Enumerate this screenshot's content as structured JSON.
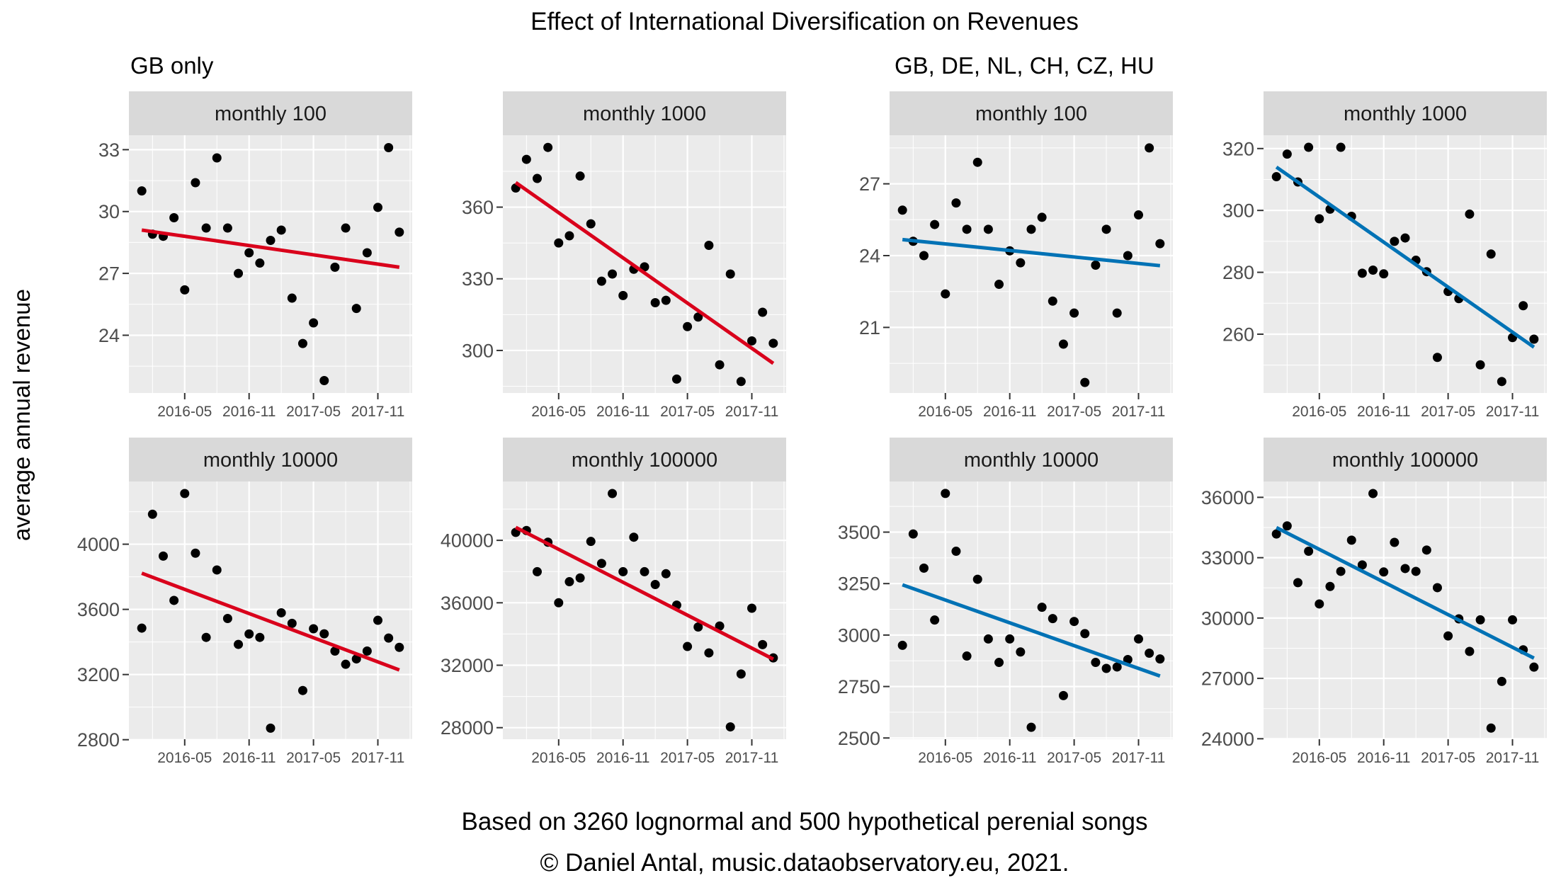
{
  "title": "Effect of International Diversification on Revenues",
  "groups": {
    "left": "GB only",
    "right": "GB, DE, NL, CH, CZ, HU"
  },
  "ylabel": "average annual revenue",
  "caption": {
    "line1": "Based on 3260 lognormal and 500 hypothetical perenial songs",
    "line2": "© Daniel Antal, music.dataobservatory.eu, 2021."
  },
  "colors": {
    "gb_trend": "#d9001b",
    "intl_trend": "#0072b5",
    "points": "#000000",
    "panel_bg": "#ebebeb",
    "strip_bg": "#d9d9d9"
  },
  "chart_data": [
    {
      "type": "scatter",
      "group": "GB only",
      "strip": "monthly 100",
      "trend_color": "#d9001b",
      "x": [
        "2016-01",
        "2016-02",
        "2016-03",
        "2016-04",
        "2016-05",
        "2016-06",
        "2016-07",
        "2016-08",
        "2016-09",
        "2016-10",
        "2016-11",
        "2016-12",
        "2017-01",
        "2017-02",
        "2017-03",
        "2017-04",
        "2017-05",
        "2017-06",
        "2017-07",
        "2017-08",
        "2017-09",
        "2017-10",
        "2017-11",
        "2017-12",
        "2018-01"
      ],
      "y": [
        31.0,
        28.9,
        28.8,
        29.7,
        26.2,
        31.4,
        29.2,
        32.6,
        29.2,
        27.0,
        28.0,
        27.5,
        28.6,
        29.1,
        25.8,
        23.6,
        24.6,
        21.8,
        27.3,
        29.2,
        25.3,
        28.0,
        30.2,
        33.1,
        29.0
      ],
      "trend": {
        "from": [
          "2016-01",
          29.1
        ],
        "to": [
          "2018-01",
          27.3
        ]
      },
      "yticks": [
        24,
        27,
        30,
        33
      ],
      "ylim": [
        21.2,
        33.7
      ],
      "xticks": [
        "2016-05",
        "2016-11",
        "2017-05",
        "2017-11"
      ]
    },
    {
      "type": "scatter",
      "group": "GB only",
      "strip": "monthly 1000",
      "trend_color": "#d9001b",
      "x": [
        "2016-01",
        "2016-02",
        "2016-03",
        "2016-04",
        "2016-05",
        "2016-06",
        "2016-07",
        "2016-08",
        "2016-09",
        "2016-10",
        "2016-11",
        "2016-12",
        "2017-01",
        "2017-02",
        "2017-03",
        "2017-04",
        "2017-05",
        "2017-06",
        "2017-07",
        "2017-08",
        "2017-09",
        "2017-10",
        "2017-11",
        "2017-12",
        "2018-01"
      ],
      "y": [
        368,
        380,
        372,
        385,
        345,
        348,
        373,
        353,
        329,
        332,
        323,
        334,
        335,
        320,
        321,
        288,
        310,
        314,
        344,
        294,
        332,
        287,
        304,
        316,
        303
      ],
      "trend": {
        "from": [
          "2016-01",
          370.3
        ],
        "to": [
          "2018-01",
          294.6
        ]
      },
      "yticks": [
        300,
        330,
        360
      ],
      "ylim": [
        282.2,
        390.1
      ],
      "xticks": [
        "2016-05",
        "2016-11",
        "2017-05",
        "2017-11"
      ]
    },
    {
      "type": "scatter",
      "group": "GB, DE, NL, CH, CZ, HU",
      "strip": "monthly 100",
      "trend_color": "#0072b5",
      "x": [
        "2016-01",
        "2016-02",
        "2016-03",
        "2016-04",
        "2016-05",
        "2016-06",
        "2016-07",
        "2016-08",
        "2016-09",
        "2016-10",
        "2016-11",
        "2016-12",
        "2017-01",
        "2017-02",
        "2017-03",
        "2017-04",
        "2017-05",
        "2017-06",
        "2017-07",
        "2017-08",
        "2017-09",
        "2017-10",
        "2017-11",
        "2017-12",
        "2018-01"
      ],
      "y": [
        25.9,
        24.6,
        24.0,
        25.3,
        22.4,
        26.2,
        25.1,
        27.9,
        25.1,
        22.8,
        24.2,
        23.7,
        25.1,
        25.6,
        22.1,
        20.3,
        21.6,
        18.7,
        23.6,
        25.1,
        21.6,
        24.0,
        25.7,
        28.5,
        24.5
      ],
      "trend": {
        "from": [
          "2016-01",
          24.67
        ],
        "to": [
          "2018-01",
          23.58
        ]
      },
      "yticks": [
        21,
        24,
        27
      ],
      "ylim": [
        18.26,
        29.03
      ],
      "xticks": [
        "2016-05",
        "2016-11",
        "2017-05",
        "2017-11"
      ]
    },
    {
      "type": "scatter",
      "group": "GB, DE, NL, CH, CZ, HU",
      "strip": "monthly 1000",
      "trend_color": "#0072b5",
      "x": [
        "2016-01",
        "2016-02",
        "2016-03",
        "2016-04",
        "2016-05",
        "2016-06",
        "2016-07",
        "2016-08",
        "2016-09",
        "2016-10",
        "2016-11",
        "2016-12",
        "2017-01",
        "2017-02",
        "2017-03",
        "2017-04",
        "2017-05",
        "2017-06",
        "2017-07",
        "2017-08",
        "2017-09",
        "2017-10",
        "2017-11",
        "2017-12",
        "2018-01"
      ],
      "y": [
        310.9,
        318.2,
        309.2,
        320.4,
        297.3,
        300.4,
        320.4,
        298.1,
        279.7,
        280.7,
        279.5,
        290.0,
        291.1,
        283.9,
        280.2,
        252.5,
        273.8,
        271.5,
        298.8,
        250.1,
        285.9,
        244.7,
        258.9,
        269.2,
        258.4
      ],
      "trend": {
        "from": [
          "2016-01",
          314.0
        ],
        "to": [
          "2018-01",
          255.8
        ]
      },
      "yticks": [
        260,
        280,
        300,
        320
      ],
      "ylim": [
        241.0,
        324.3
      ],
      "xticks": [
        "2016-05",
        "2016-11",
        "2017-05",
        "2017-11"
      ]
    },
    {
      "type": "scatter",
      "group": "GB only",
      "strip": "monthly 10000",
      "trend_color": "#d9001b",
      "x": [
        "2016-01",
        "2016-02",
        "2016-03",
        "2016-04",
        "2016-05",
        "2016-06",
        "2016-07",
        "2016-08",
        "2016-09",
        "2016-10",
        "2016-11",
        "2016-12",
        "2017-01",
        "2017-02",
        "2017-03",
        "2017-04",
        "2017-05",
        "2017-06",
        "2017-07",
        "2017-08",
        "2017-09",
        "2017-10",
        "2017-11",
        "2017-12",
        "2018-01"
      ],
      "y": [
        3485,
        4184,
        3927,
        3655,
        4311,
        3945,
        3428,
        3842,
        3544,
        3385,
        3449,
        3428,
        2871,
        3579,
        3514,
        3102,
        3481,
        3450,
        3344,
        3263,
        3296,
        3344,
        3533,
        3424,
        3367
      ],
      "trend": {
        "from": [
          "2016-01",
          3822
        ],
        "to": [
          "2018-01",
          3228
        ]
      },
      "yticks": [
        2800,
        3200,
        3600,
        4000
      ],
      "ylim": [
        2803,
        4385
      ],
      "xticks": [
        "2016-05",
        "2016-11",
        "2017-05",
        "2017-11"
      ]
    },
    {
      "type": "scatter",
      "group": "GB only",
      "strip": "monthly 100000",
      "trend_color": "#d9001b",
      "x": [
        "2016-01",
        "2016-02",
        "2016-03",
        "2016-04",
        "2016-05",
        "2016-06",
        "2016-07",
        "2016-08",
        "2016-09",
        "2016-10",
        "2016-11",
        "2016-12",
        "2017-01",
        "2017-02",
        "2017-03",
        "2017-04",
        "2017-05",
        "2017-06",
        "2017-07",
        "2017-08",
        "2017-09",
        "2017-10",
        "2017-11",
        "2017-12",
        "2018-01"
      ],
      "y": [
        40510,
        40630,
        37990,
        39880,
        36000,
        37350,
        37590,
        39930,
        38520,
        43000,
        37990,
        40200,
        37990,
        37170,
        37860,
        35850,
        33200,
        34450,
        32790,
        34510,
        28050,
        31440,
        35650,
        33320,
        32470
      ],
      "trend": {
        "from": [
          "2016-01",
          40830
        ],
        "to": [
          "2018-01",
          32390
        ]
      },
      "yticks": [
        28000,
        32000,
        36000,
        40000
      ],
      "ylim": [
        27260,
        43770
      ],
      "xticks": [
        "2016-05",
        "2016-11",
        "2017-05",
        "2017-11"
      ]
    },
    {
      "type": "scatter",
      "group": "GB, DE, NL, CH, CZ, HU",
      "strip": "monthly 10000",
      "trend_color": "#0072b5",
      "x": [
        "2016-01",
        "2016-02",
        "2016-03",
        "2016-04",
        "2016-05",
        "2016-06",
        "2016-07",
        "2016-08",
        "2016-09",
        "2016-10",
        "2016-11",
        "2016-12",
        "2017-01",
        "2017-02",
        "2017-03",
        "2017-04",
        "2017-05",
        "2017-06",
        "2017-07",
        "2017-08",
        "2017-09",
        "2017-10",
        "2017-11",
        "2017-12",
        "2018-01"
      ],
      "y": [
        2950,
        3491,
        3325,
        3073,
        3688,
        3407,
        2898,
        3271,
        2981,
        2867,
        2981,
        2918,
        2552,
        3135,
        3080,
        2706,
        3066,
        3007,
        2867,
        2838,
        2845,
        2881,
        2981,
        2912,
        2884
      ],
      "trend": {
        "from": [
          "2016-01",
          3244
        ],
        "to": [
          "2018-01",
          2801
        ]
      },
      "yticks": [
        2500,
        2750,
        3000,
        3250,
        3500
      ],
      "ylim": [
        2494,
        3746
      ],
      "xticks": [
        "2016-05",
        "2016-11",
        "2017-05",
        "2017-11"
      ]
    },
    {
      "type": "scatter",
      "group": "GB, DE, NL, CH, CZ, HU",
      "strip": "monthly 100000",
      "trend_color": "#0072b5",
      "x": [
        "2016-01",
        "2016-02",
        "2016-03",
        "2016-04",
        "2016-05",
        "2016-06",
        "2016-07",
        "2016-08",
        "2016-09",
        "2016-10",
        "2016-11",
        "2016-12",
        "2017-01",
        "2017-02",
        "2017-03",
        "2017-04",
        "2017-05",
        "2017-06",
        "2017-07",
        "2017-08",
        "2017-09",
        "2017-10",
        "2017-11",
        "2017-12",
        "2018-01"
      ],
      "y": [
        34180,
        34580,
        31760,
        33320,
        30700,
        31570,
        32320,
        33870,
        32640,
        36190,
        32290,
        33760,
        32460,
        32320,
        33380,
        31510,
        29110,
        29960,
        28340,
        29910,
        24530,
        26850,
        29910,
        28420,
        27560
      ],
      "trend": {
        "from": [
          "2016-01",
          34495
        ],
        "to": [
          "2018-01",
          28006
        ]
      },
      "yticks": [
        24000,
        27000,
        30000,
        33000,
        36000
      ],
      "ylim": [
        23976,
        36788
      ],
      "xticks": [
        "2016-05",
        "2016-11",
        "2017-05",
        "2017-11"
      ]
    }
  ]
}
